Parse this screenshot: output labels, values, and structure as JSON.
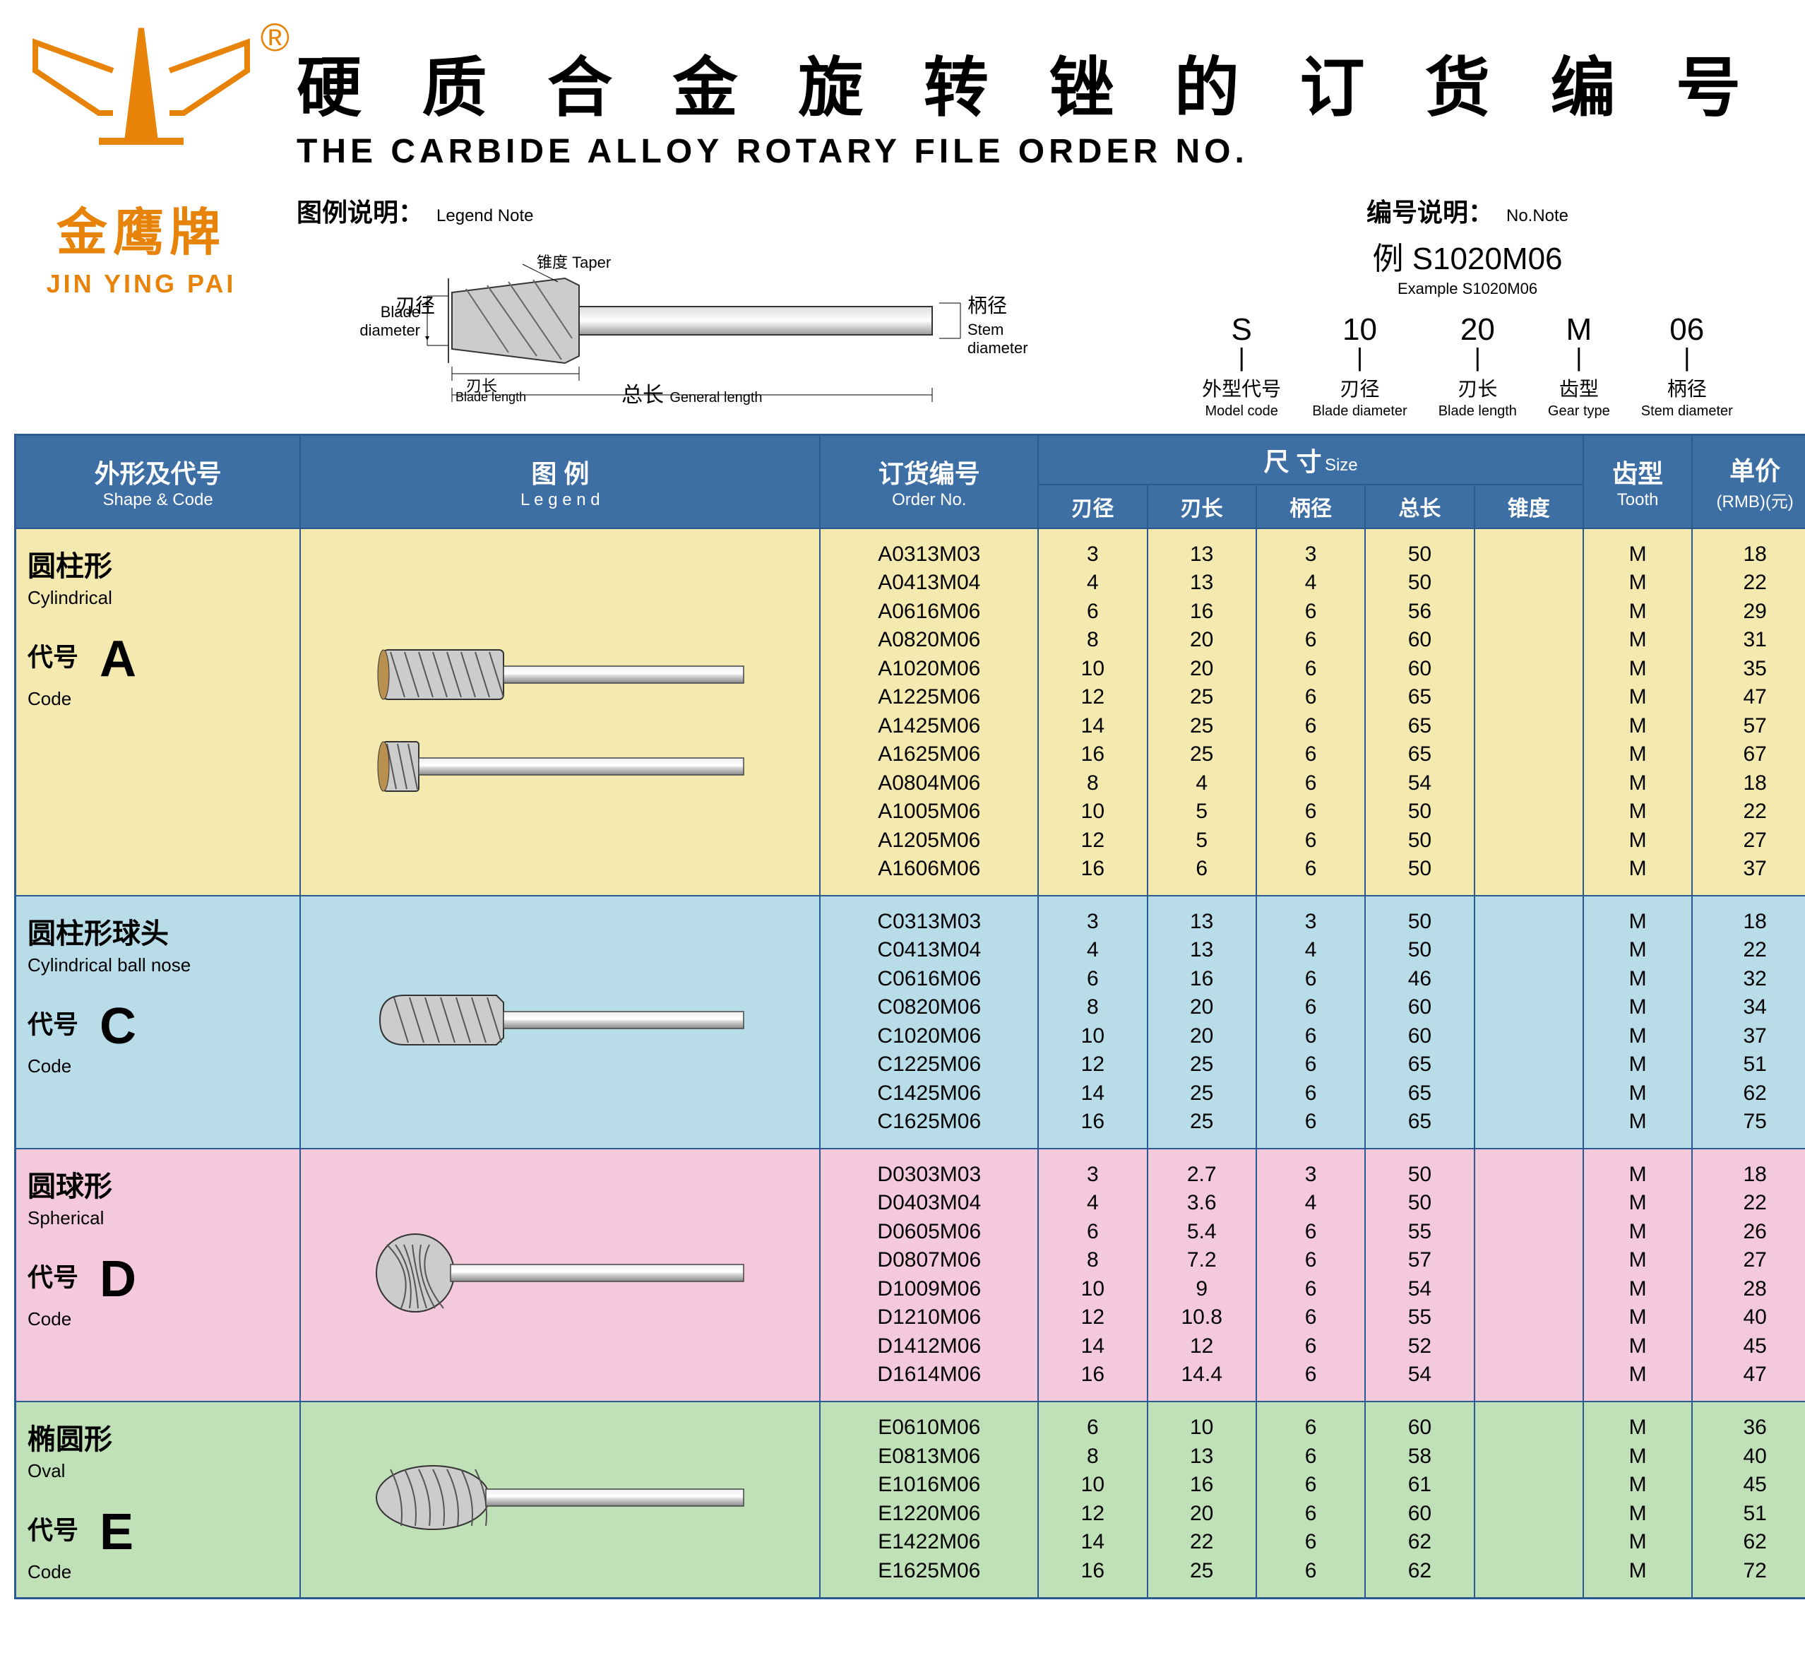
{
  "brand": {
    "cn": "金鹰牌",
    "en": "JIN YING PAI",
    "reg": "®",
    "logo_color": "#e8830a"
  },
  "title": {
    "cn": "硬 质 合 金 旋 转 锉 的 订 货 编 号",
    "en": "THE CARBIDE ALLOY ROTARY FILE ORDER NO."
  },
  "legend": {
    "title_cn": "图例说明：",
    "title_en": "Legend Note",
    "labels": {
      "taper_cn": "锥度",
      "taper_en": "Taper",
      "bd_cn": "刃径",
      "bd_en": "Blade diameter",
      "bl_cn": "刃长",
      "bl_en": "Blade length",
      "gl_cn": "总长",
      "gl_en": "General length",
      "sd_cn": "柄径",
      "sd_en": "Stem diameter"
    }
  },
  "no_note": {
    "title_cn": "编号说明：",
    "title_en": "No.Note",
    "example_cn": "例 S1020M06",
    "example_en": "Example S1020M06",
    "breakdown": [
      {
        "big": "S",
        "cn": "外型代号",
        "en": "Model code"
      },
      {
        "big": "10",
        "cn": "刃径",
        "en": "Blade diameter"
      },
      {
        "big": "20",
        "cn": "刃长",
        "en": "Blade length"
      },
      {
        "big": "M",
        "cn": "齿型",
        "en": "Gear type"
      },
      {
        "big": "06",
        "cn": "柄径",
        "en": "Stem diameter"
      }
    ]
  },
  "table_header": {
    "shape_cn": "外形及代号",
    "shape_en": "Shape & Code",
    "legend_cn": "图  例",
    "legend_en": "L e g e n d",
    "order_cn": "订货编号",
    "order_en": "Order No.",
    "size_cn": "尺  寸",
    "size_en": "Size",
    "dims": [
      "刃径",
      "刃长",
      "柄径",
      "总长",
      "锥度"
    ],
    "tooth_cn": "齿型",
    "tooth_en": "Tooth",
    "price_cn": "单价",
    "price_en": "(RMB)(元)"
  },
  "sections": [
    {
      "code": "A",
      "bg": "row-a",
      "shape_cn": "圆柱形",
      "shape_en": "Cylindrical",
      "code_cn": "代号",
      "code_en": "Code",
      "tool_type": "cylindrical",
      "rows": [
        {
          "order": "A0313M03",
          "d": "3",
          "l": "13",
          "sd": "3",
          "gl": "50",
          "taper": "",
          "tooth": "M",
          "price": "18"
        },
        {
          "order": "A0413M04",
          "d": "4",
          "l": "13",
          "sd": "4",
          "gl": "50",
          "taper": "",
          "tooth": "M",
          "price": "22"
        },
        {
          "order": "A0616M06",
          "d": "6",
          "l": "16",
          "sd": "6",
          "gl": "56",
          "taper": "",
          "tooth": "M",
          "price": "29"
        },
        {
          "order": "A0820M06",
          "d": "8",
          "l": "20",
          "sd": "6",
          "gl": "60",
          "taper": "",
          "tooth": "M",
          "price": "31"
        },
        {
          "order": "A1020M06",
          "d": "10",
          "l": "20",
          "sd": "6",
          "gl": "60",
          "taper": "",
          "tooth": "M",
          "price": "35"
        },
        {
          "order": "A1225M06",
          "d": "12",
          "l": "25",
          "sd": "6",
          "gl": "65",
          "taper": "",
          "tooth": "M",
          "price": "47"
        },
        {
          "order": "A1425M06",
          "d": "14",
          "l": "25",
          "sd": "6",
          "gl": "65",
          "taper": "",
          "tooth": "M",
          "price": "57"
        },
        {
          "order": "A1625M06",
          "d": "16",
          "l": "25",
          "sd": "6",
          "gl": "65",
          "taper": "",
          "tooth": "M",
          "price": "67"
        },
        {
          "order": "A0804M06",
          "d": "8",
          "l": "4",
          "sd": "6",
          "gl": "54",
          "taper": "",
          "tooth": "M",
          "price": "18"
        },
        {
          "order": "A1005M06",
          "d": "10",
          "l": "5",
          "sd": "6",
          "gl": "50",
          "taper": "",
          "tooth": "M",
          "price": "22"
        },
        {
          "order": "A1205M06",
          "d": "12",
          "l": "5",
          "sd": "6",
          "gl": "50",
          "taper": "",
          "tooth": "M",
          "price": "27"
        },
        {
          "order": "A1606M06",
          "d": "16",
          "l": "6",
          "sd": "6",
          "gl": "50",
          "taper": "",
          "tooth": "M",
          "price": "37"
        }
      ]
    },
    {
      "code": "C",
      "bg": "row-c",
      "shape_cn": "圆柱形球头",
      "shape_en": "Cylindrical ball nose",
      "code_cn": "代号",
      "code_en": "Code",
      "tool_type": "ballnose",
      "rows": [
        {
          "order": "C0313M03",
          "d": "3",
          "l": "13",
          "sd": "3",
          "gl": "50",
          "taper": "",
          "tooth": "M",
          "price": "18"
        },
        {
          "order": "C0413M04",
          "d": "4",
          "l": "13",
          "sd": "4",
          "gl": "50",
          "taper": "",
          "tooth": "M",
          "price": "22"
        },
        {
          "order": "C0616M06",
          "d": "6",
          "l": "16",
          "sd": "6",
          "gl": "46",
          "taper": "",
          "tooth": "M",
          "price": "32"
        },
        {
          "order": "C0820M06",
          "d": "8",
          "l": "20",
          "sd": "6",
          "gl": "60",
          "taper": "",
          "tooth": "M",
          "price": "34"
        },
        {
          "order": "C1020M06",
          "d": "10",
          "l": "20",
          "sd": "6",
          "gl": "60",
          "taper": "",
          "tooth": "M",
          "price": "37"
        },
        {
          "order": "C1225M06",
          "d": "12",
          "l": "25",
          "sd": "6",
          "gl": "65",
          "taper": "",
          "tooth": "M",
          "price": "51"
        },
        {
          "order": "C1425M06",
          "d": "14",
          "l": "25",
          "sd": "6",
          "gl": "65",
          "taper": "",
          "tooth": "M",
          "price": "62"
        },
        {
          "order": "C1625M06",
          "d": "16",
          "l": "25",
          "sd": "6",
          "gl": "65",
          "taper": "",
          "tooth": "M",
          "price": "75"
        }
      ]
    },
    {
      "code": "D",
      "bg": "row-d",
      "shape_cn": "圆球形",
      "shape_en": "Spherical",
      "code_cn": "代号",
      "code_en": "Code",
      "tool_type": "spherical",
      "rows": [
        {
          "order": "D0303M03",
          "d": "3",
          "l": "2.7",
          "sd": "3",
          "gl": "50",
          "taper": "",
          "tooth": "M",
          "price": "18"
        },
        {
          "order": "D0403M04",
          "d": "4",
          "l": "3.6",
          "sd": "4",
          "gl": "50",
          "taper": "",
          "tooth": "M",
          "price": "22"
        },
        {
          "order": "D0605M06",
          "d": "6",
          "l": "5.4",
          "sd": "6",
          "gl": "55",
          "taper": "",
          "tooth": "M",
          "price": "26"
        },
        {
          "order": "D0807M06",
          "d": "8",
          "l": "7.2",
          "sd": "6",
          "gl": "57",
          "taper": "",
          "tooth": "M",
          "price": "27"
        },
        {
          "order": "D1009M06",
          "d": "10",
          "l": "9",
          "sd": "6",
          "gl": "54",
          "taper": "",
          "tooth": "M",
          "price": "28"
        },
        {
          "order": "D1210M06",
          "d": "12",
          "l": "10.8",
          "sd": "6",
          "gl": "55",
          "taper": "",
          "tooth": "M",
          "price": "40"
        },
        {
          "order": "D1412M06",
          "d": "14",
          "l": "12",
          "sd": "6",
          "gl": "52",
          "taper": "",
          "tooth": "M",
          "price": "45"
        },
        {
          "order": "D1614M06",
          "d": "16",
          "l": "14.4",
          "sd": "6",
          "gl": "54",
          "taper": "",
          "tooth": "M",
          "price": "47"
        }
      ]
    },
    {
      "code": "E",
      "bg": "row-e",
      "shape_cn": "椭圆形",
      "shape_en": "Oval",
      "code_cn": "代号",
      "code_en": "Code",
      "tool_type": "oval",
      "rows": [
        {
          "order": "E0610M06",
          "d": "6",
          "l": "10",
          "sd": "6",
          "gl": "60",
          "taper": "",
          "tooth": "M",
          "price": "36"
        },
        {
          "order": "E0813M06",
          "d": "8",
          "l": "13",
          "sd": "6",
          "gl": "58",
          "taper": "",
          "tooth": "M",
          "price": "40"
        },
        {
          "order": "E1016M06",
          "d": "10",
          "l": "16",
          "sd": "6",
          "gl": "61",
          "taper": "",
          "tooth": "M",
          "price": "45"
        },
        {
          "order": "E1220M06",
          "d": "12",
          "l": "20",
          "sd": "6",
          "gl": "60",
          "taper": "",
          "tooth": "M",
          "price": "51"
        },
        {
          "order": "E1422M06",
          "d": "14",
          "l": "22",
          "sd": "6",
          "gl": "62",
          "taper": "",
          "tooth": "M",
          "price": "62"
        },
        {
          "order": "E1625M06",
          "d": "16",
          "l": "25",
          "sd": "6",
          "gl": "62",
          "taper": "",
          "tooth": "M",
          "price": "72"
        }
      ]
    }
  ],
  "colors": {
    "header_bg": "#3d6fa5",
    "border": "#2a5a8f"
  }
}
